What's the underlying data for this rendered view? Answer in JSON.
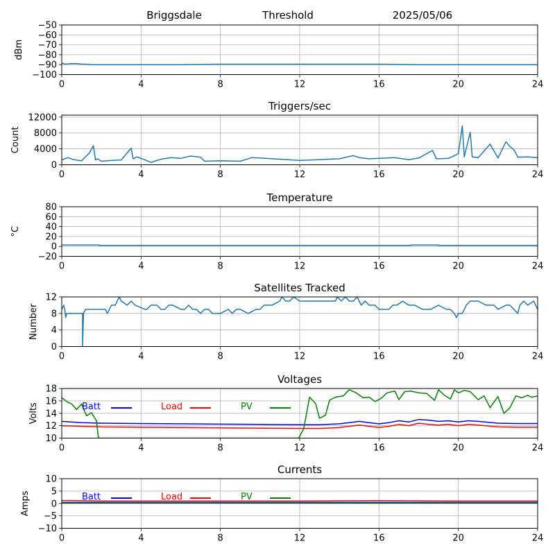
{
  "header": {
    "station": "Briggsdale",
    "mode": "Threshold",
    "date": "2025/05/06"
  },
  "chart_data": [
    {
      "id": "signal",
      "type": "line",
      "title": "",
      "ylabel": "dBm",
      "xlabel": "",
      "xlim": [
        0,
        24
      ],
      "ylim": [
        -100,
        -50
      ],
      "xticks": [
        0,
        4,
        8,
        12,
        16,
        20,
        24
      ],
      "yticks": [
        -100,
        -90,
        -80,
        -70,
        -60,
        -50
      ],
      "grid": true,
      "series": [
        {
          "color": "#1f77b4",
          "x": [
            0,
            0.2,
            0.4,
            0.6,
            0.8,
            1.0,
            1.2,
            1.5,
            2,
            3,
            4,
            6,
            8,
            10,
            12,
            14,
            16,
            18,
            20,
            22,
            24
          ],
          "y": [
            -88.5,
            -89.5,
            -89,
            -89,
            -89,
            -89.5,
            -89.5,
            -90,
            -90,
            -90,
            -90,
            -90,
            -89.5,
            -89.5,
            -89.5,
            -89.5,
            -89.5,
            -90,
            -90,
            -90,
            -90
          ]
        }
      ]
    },
    {
      "id": "triggers",
      "type": "line",
      "title": "Triggers/sec",
      "ylabel": "Count",
      "xlabel": "",
      "xlim": [
        0,
        24
      ],
      "ylim": [
        0,
        12500
      ],
      "xticks": [
        0,
        4,
        8,
        12,
        16,
        20,
        24
      ],
      "yticks": [
        0,
        4000,
        8000,
        12000
      ],
      "grid": true,
      "series": [
        {
          "color": "#1f77b4",
          "x": [
            0,
            0.3,
            0.6,
            1.0,
            1.4,
            1.6,
            1.7,
            1.8,
            2.0,
            2.5,
            3.0,
            3.5,
            3.6,
            3.8,
            4.2,
            4.5,
            5.0,
            5.5,
            6.0,
            6.5,
            7.0,
            7.2,
            8.0,
            9.0,
            9.6,
            10.0,
            11.0,
            12.0,
            13.0,
            14.0,
            14.7,
            15.0,
            15.5,
            16.0,
            16.8,
            17.5,
            18.0,
            18.7,
            18.9,
            19.5,
            20.0,
            20.2,
            20.3,
            20.5,
            20.6,
            20.7,
            21.0,
            21.6,
            22.0,
            22.4,
            22.6,
            22.8,
            23.0,
            23.5,
            24.0
          ],
          "y": [
            1200,
            1800,
            1300,
            1000,
            3000,
            4800,
            1200,
            1500,
            900,
            1100,
            1200,
            4200,
            1500,
            2000,
            1200,
            600,
            1400,
            1800,
            1600,
            2200,
            1900,
            900,
            1000,
            900,
            1800,
            1700,
            1400,
            1100,
            1300,
            1500,
            2300,
            1800,
            1500,
            1600,
            1800,
            1300,
            1700,
            3600,
            1500,
            1600,
            2800,
            9800,
            2000,
            6200,
            8200,
            2000,
            1800,
            5200,
            1700,
            5800,
            4600,
            3800,
            1900,
            2000,
            1800
          ]
        }
      ]
    },
    {
      "id": "temperature",
      "type": "line",
      "title": "Temperature",
      "ylabel": "°C",
      "xlabel": "",
      "xlim": [
        0,
        24
      ],
      "ylim": [
        -20,
        80
      ],
      "xticks": [
        0,
        4,
        8,
        12,
        16,
        20,
        24
      ],
      "yticks": [
        -20,
        0,
        20,
        40,
        60,
        80
      ],
      "grid": true,
      "series": [
        {
          "color": "#1f77b4",
          "x": [
            0,
            1.9,
            1.9,
            17.6,
            17.6,
            19.0,
            19.0,
            24
          ],
          "y": [
            3,
            3,
            2,
            2,
            3,
            3,
            2,
            2
          ]
        }
      ]
    },
    {
      "id": "satellites",
      "type": "line",
      "title": "Satellites Tracked",
      "ylabel": "Number",
      "xlabel": "",
      "xlim": [
        0,
        24
      ],
      "ylim": [
        0,
        12
      ],
      "xticks": [
        0,
        4,
        8,
        12,
        16,
        20,
        24
      ],
      "yticks": [
        0,
        4,
        8,
        12
      ],
      "grid": true,
      "series": [
        {
          "color": "#1f77b4",
          "x": [
            0,
            0.1,
            0.15,
            0.2,
            0.25,
            0.3,
            0.35,
            1.05,
            1.05,
            1.1,
            1.1,
            1.2,
            2.2,
            2.3,
            2.4,
            2.5,
            2.7,
            2.8,
            2.9,
            3.0,
            3.3,
            3.5,
            3.7,
            4.2,
            4.3,
            4.5,
            4.8,
            5.0,
            5.2,
            5.4,
            5.6,
            6.0,
            6.2,
            6.4,
            6.6,
            6.8,
            7.0,
            7.2,
            7.4,
            7.6,
            8.0,
            8.4,
            8.6,
            8.8,
            9.0,
            9.4,
            9.8,
            10.0,
            10.2,
            10.6,
            11.0,
            11.1,
            11.3,
            11.5,
            11.7,
            12.0,
            12.5,
            13.0,
            13.4,
            13.8,
            13.9,
            14.1,
            14.3,
            14.5,
            14.7,
            14.9,
            15.1,
            15.3,
            15.5,
            15.8,
            16.0,
            16.3,
            16.5,
            16.7,
            16.9,
            17.2,
            17.5,
            17.8,
            18.2,
            18.6,
            19.0,
            19.4,
            19.6,
            19.8,
            19.9,
            20.0,
            20.2,
            20.4,
            20.6,
            20.8,
            21.0,
            21.4,
            21.8,
            22.0,
            22.4,
            22.6,
            22.8,
            23.0,
            23.1,
            23.3,
            23.5,
            23.8,
            24.0
          ],
          "y": [
            9,
            10,
            9,
            7,
            8,
            8,
            8,
            8,
            0,
            8,
            8,
            9,
            9,
            8,
            9,
            10,
            10,
            11,
            12,
            11,
            10,
            11,
            10,
            9,
            9,
            10,
            10,
            9,
            9,
            10,
            10,
            9,
            9,
            10,
            9,
            9,
            8,
            9,
            9,
            8,
            8,
            9,
            8,
            9,
            9,
            8,
            9,
            9,
            10,
            10,
            11,
            12,
            11,
            11,
            12,
            11,
            11,
            11,
            11,
            11,
            12,
            11,
            12,
            11,
            11,
            12,
            10,
            11,
            10,
            10,
            9,
            9,
            9,
            10,
            10,
            11,
            10,
            10,
            9,
            9,
            10,
            9,
            9,
            8,
            7,
            8,
            8,
            10,
            11,
            11,
            11,
            10,
            10,
            9,
            10,
            10,
            9,
            8,
            10,
            11,
            10,
            11,
            9
          ]
        }
      ]
    },
    {
      "id": "voltages",
      "type": "line",
      "title": "Voltages",
      "ylabel": "Volts",
      "xlabel": "",
      "xlim": [
        0,
        24
      ],
      "ylim": [
        10,
        18
      ],
      "xticks": [
        0,
        4,
        8,
        12,
        16,
        20,
        24
      ],
      "yticks": [
        10,
        12,
        14,
        16,
        18
      ],
      "grid": true,
      "legend": "top-left",
      "series": [
        {
          "name": "Batt",
          "color": "#0000ff",
          "x": [
            0,
            1,
            2,
            4,
            6,
            8,
            10,
            12,
            13,
            14,
            14.5,
            15,
            15.5,
            16,
            16.5,
            17,
            17.5,
            18,
            18.5,
            19,
            19.5,
            20,
            20.5,
            21,
            22,
            23,
            24
          ],
          "y": [
            12.7,
            12.5,
            12.4,
            12.35,
            12.3,
            12.25,
            12.2,
            12.15,
            12.15,
            12.3,
            12.5,
            12.7,
            12.5,
            12.3,
            12.5,
            12.8,
            12.6,
            13.0,
            12.9,
            12.7,
            12.8,
            12.6,
            12.8,
            12.7,
            12.4,
            12.35,
            12.35
          ]
        },
        {
          "name": "Load",
          "color": "#ff0000",
          "x": [
            0,
            1,
            2,
            4,
            6,
            8,
            10,
            12,
            13,
            14,
            14.5,
            15,
            15.5,
            16,
            16.5,
            17,
            17.5,
            18,
            18.5,
            19,
            19.5,
            20,
            20.5,
            21,
            22,
            23,
            24
          ],
          "y": [
            12.0,
            11.9,
            11.8,
            11.75,
            11.7,
            11.65,
            11.6,
            11.55,
            11.55,
            11.7,
            11.9,
            12.1,
            11.9,
            11.7,
            11.9,
            12.2,
            12.0,
            12.4,
            12.2,
            12.1,
            12.2,
            12.0,
            12.2,
            12.1,
            11.8,
            11.75,
            11.75
          ]
        },
        {
          "name": "PV",
          "color": "#008000",
          "x": [
            0,
            0.25,
            0.5,
            0.75,
            1.0,
            1.25,
            1.5,
            1.75,
            1.85,
            11.95,
            12.2,
            12.5,
            12.8,
            13.0,
            13.3,
            13.5,
            13.8,
            14.2,
            14.5,
            14.8,
            15.2,
            15.5,
            15.8,
            16.1,
            16.4,
            16.8,
            17.0,
            17.3,
            17.6,
            18.0,
            18.4,
            18.8,
            19.0,
            19.3,
            19.6,
            19.8,
            20.0,
            20.3,
            20.6,
            21.0,
            21.3,
            21.6,
            22.0,
            22.3,
            22.6,
            22.9,
            23.2,
            23.5,
            23.7,
            24.0
          ],
          "y": [
            16.5,
            15.9,
            15.5,
            14.6,
            15.5,
            13.6,
            14.1,
            12.8,
            10.0,
            10.0,
            11.5,
            16.6,
            15.6,
            13.2,
            13.7,
            16.1,
            16.6,
            16.8,
            17.8,
            17.4,
            16.5,
            16.6,
            15.9,
            16.4,
            17.3,
            17.6,
            16.2,
            17.5,
            17.6,
            17.3,
            17.2,
            16.1,
            17.8,
            16.9,
            16.3,
            17.8,
            17.3,
            17.7,
            17.5,
            16.2,
            16.8,
            14.9,
            16.7,
            14.0,
            14.9,
            16.8,
            16.5,
            16.9,
            16.6,
            16.8
          ]
        }
      ]
    },
    {
      "id": "currents",
      "type": "line",
      "title": "Currents",
      "ylabel": "Amps",
      "xlabel": "",
      "xlim": [
        0,
        24
      ],
      "ylim": [
        -10,
        10
      ],
      "xticks": [
        0,
        4,
        8,
        12,
        16,
        20,
        24
      ],
      "yticks": [
        -10,
        -5,
        0,
        5,
        10
      ],
      "grid": true,
      "legend": "top-left",
      "series": [
        {
          "name": "Batt",
          "color": "#0000ff",
          "x": [
            0,
            4,
            8,
            12,
            16,
            20,
            24
          ],
          "y": [
            0.4,
            0.4,
            0.4,
            0.4,
            0.4,
            0.4,
            0.4
          ]
        },
        {
          "name": "Load",
          "color": "#ff0000",
          "x": [
            0,
            1,
            2,
            4,
            8,
            12,
            16,
            20,
            24
          ],
          "y": [
            1.2,
            1.1,
            1.0,
            1.0,
            1.0,
            1.0,
            1.1,
            1.0,
            1.0
          ]
        },
        {
          "name": "PV",
          "color": "#008000",
          "x": [
            0,
            4,
            8,
            12,
            16,
            20,
            24
          ],
          "y": [
            0.1,
            0.1,
            0.1,
            0.1,
            0.1,
            0.1,
            0.1
          ]
        }
      ]
    }
  ]
}
